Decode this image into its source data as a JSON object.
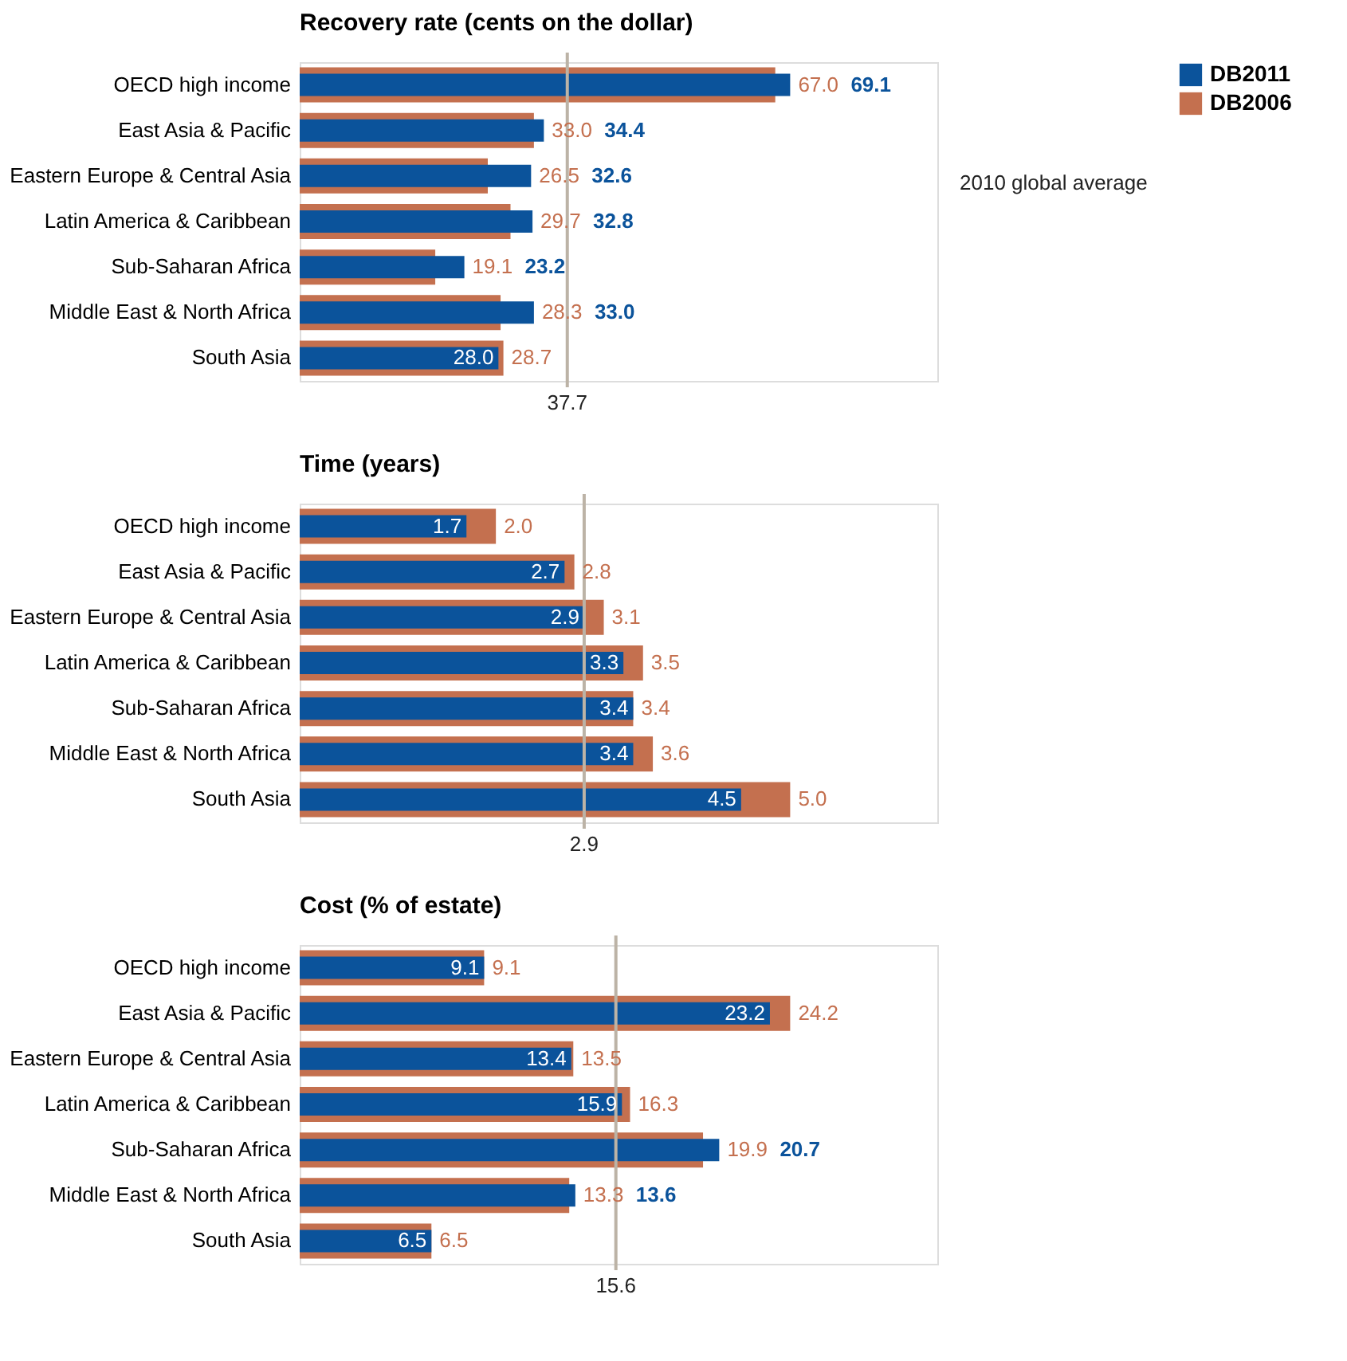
{
  "chart_data": [
    {
      "type": "bar",
      "orientation": "horizontal",
      "title": "Recovery rate (cents on the dollar)",
      "categories": [
        "OECD high income",
        "East Asia & Pacific",
        "Eastern Europe & Central Asia",
        "Latin America & Caribbean",
        "Sub-Saharan Africa",
        "Middle East & North Africa",
        "South Asia"
      ],
      "series": [
        {
          "name": "DB2011",
          "color": "#0b539b",
          "values": [
            69.1,
            34.4,
            32.6,
            32.8,
            23.2,
            33.0,
            28.0
          ],
          "value_labels": [
            "69.1",
            "34.4",
            "32.6",
            "32.8",
            "23.2",
            "33.0",
            "28.0"
          ]
        },
        {
          "name": "DB2006",
          "color": "#c4704f",
          "values": [
            67.0,
            33.0,
            26.5,
            29.7,
            19.1,
            28.3,
            28.7
          ],
          "value_labels": [
            "67.0",
            "33.0",
            "26.5",
            "29.7",
            "19.1",
            "28.3",
            "28.7"
          ]
        }
      ],
      "tick_labels": "y",
      "legend": "right",
      "ref_lines": [
        {
          "axis": "x",
          "value": 37.7,
          "label": "37.7",
          "color": "#bcb3a6"
        }
      ],
      "annotations": [
        "2010 global average"
      ]
    },
    {
      "type": "bar",
      "orientation": "horizontal",
      "title": "Time (years)",
      "categories": [
        "OECD high income",
        "East Asia & Pacific",
        "Eastern Europe & Central Asia",
        "Latin America & Caribbean",
        "Sub-Saharan Africa",
        "Middle East & North Africa",
        "South Asia"
      ],
      "series": [
        {
          "name": "DB2011",
          "color": "#0b539b",
          "values": [
            1.7,
            2.7,
            2.9,
            3.3,
            3.4,
            3.4,
            4.5
          ],
          "value_labels": [
            "1.7",
            "2.7",
            "2.9",
            "3.3",
            "3.4",
            "3.4",
            "4.5"
          ]
        },
        {
          "name": "DB2006",
          "color": "#c4704f",
          "values": [
            2.0,
            2.8,
            3.1,
            3.5,
            3.4,
            3.6,
            5.0
          ],
          "value_labels": [
            "2.0",
            "2.8",
            "3.1",
            "3.5",
            "3.4",
            "3.6",
            "5.0"
          ]
        }
      ],
      "tick_labels": "y",
      "ref_lines": [
        {
          "axis": "x",
          "value": 2.9,
          "label": "2.9",
          "color": "#bcb3a6"
        }
      ]
    },
    {
      "type": "bar",
      "orientation": "horizontal",
      "title": "Cost (% of estate)",
      "categories": [
        "OECD high income",
        "East Asia & Pacific",
        "Eastern Europe & Central Asia",
        "Latin America & Caribbean",
        "Sub-Saharan Africa",
        "Middle East & North Africa",
        "South Asia"
      ],
      "series": [
        {
          "name": "DB2011",
          "color": "#0b539b",
          "values": [
            9.1,
            23.2,
            13.4,
            15.9,
            20.7,
            13.6,
            6.5
          ],
          "value_labels": [
            "9.1",
            "23.2",
            "13.4",
            "15.9",
            "20.7",
            "13.6",
            "6.5"
          ]
        },
        {
          "name": "DB2006",
          "color": "#c4704f",
          "values": [
            9.1,
            24.2,
            13.5,
            16.3,
            19.9,
            13.3,
            6.5
          ],
          "value_labels": [
            "9.1",
            "24.2",
            "13.5",
            "16.3",
            "19.9",
            "13.3",
            "6.5"
          ]
        }
      ],
      "tick_labels": "y",
      "ref_lines": [
        {
          "axis": "x",
          "value": 15.6,
          "label": "15.6",
          "color": "#bcb3a6"
        }
      ]
    }
  ]
}
